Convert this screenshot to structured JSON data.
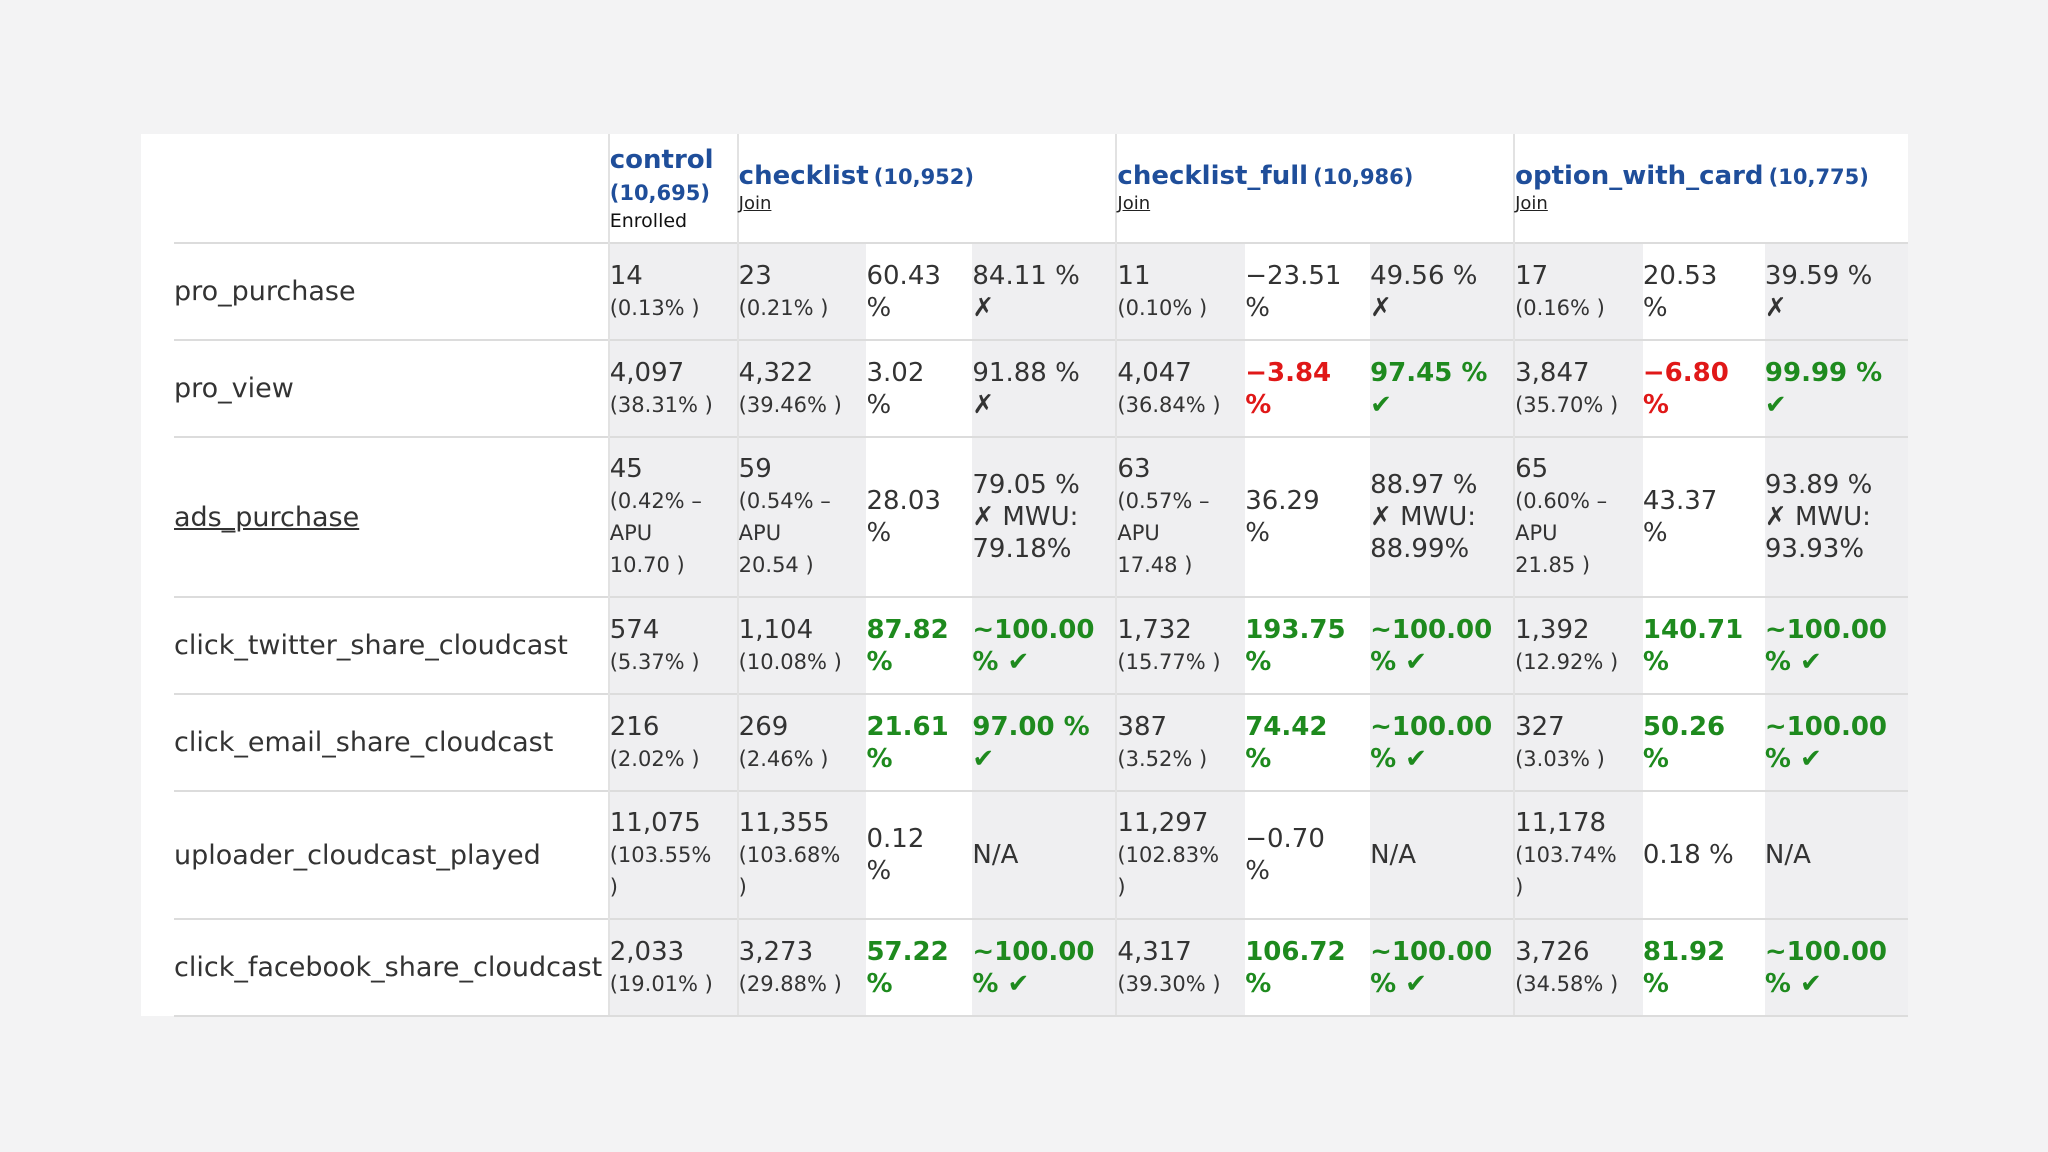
{
  "header": {
    "control": {
      "name": "control",
      "count": "(10,695)",
      "note": "Enrolled"
    },
    "variants": [
      {
        "name": "checklist",
        "count": "(10,952)",
        "link": "Join"
      },
      {
        "name": "checklist_full",
        "count": "(10,986)",
        "link": "Join"
      },
      {
        "name": "option_with_card",
        "count": "(10,775)",
        "link": "Join"
      }
    ]
  },
  "rows": [
    {
      "metric": "pro_purchase",
      "control": {
        "value": "14",
        "pct": "(0.13% )"
      },
      "variants": [
        {
          "value": "23",
          "pct": "(0.21% )",
          "change": [
            "60.43",
            "%"
          ],
          "conf": [
            "84.11 %",
            "✗"
          ]
        },
        {
          "value": "11",
          "pct": "(0.10% )",
          "change": [
            "−23.51",
            "%"
          ],
          "conf": [
            "49.56 %",
            "✗"
          ]
        },
        {
          "value": "17",
          "pct": "(0.16% )",
          "change": [
            "20.53",
            "%"
          ],
          "conf": [
            "39.59 %",
            "✗"
          ]
        }
      ]
    },
    {
      "metric": "pro_view",
      "control": {
        "value": "4,097",
        "pct": "(38.31% )"
      },
      "variants": [
        {
          "value": "4,322",
          "pct": "(39.46% )",
          "change": [
            "3.02",
            "%"
          ],
          "conf": [
            "91.88 %",
            "✗"
          ]
        },
        {
          "value": "4,047",
          "pct": "(36.84% )",
          "change": [
            "−3.84",
            "%"
          ],
          "conf": [
            "97.45 %",
            "✔"
          ]
        },
        {
          "value": "3,847",
          "pct": "(35.70% )",
          "change": [
            "−6.80",
            "%"
          ],
          "conf": [
            "99.99 %",
            "✔"
          ]
        }
      ]
    },
    {
      "metric": "ads_purchase",
      "control": {
        "value": "45",
        "pct": [
          "(0.42% –",
          "APU",
          "10.70 )"
        ]
      },
      "variants": [
        {
          "value": "59",
          "pct": [
            "(0.54% –",
            "APU",
            "20.54 )"
          ],
          "change": [
            "28.03",
            "%"
          ],
          "conf": [
            "79.05 %",
            "✗ MWU:",
            "79.18%"
          ]
        },
        {
          "value": "63",
          "pct": [
            "(0.57% –",
            "APU",
            "17.48 )"
          ],
          "change": [
            "36.29",
            "%"
          ],
          "conf": [
            "88.97 %",
            "✗ MWU:",
            "88.99%"
          ]
        },
        {
          "value": "65",
          "pct": [
            "(0.60% –",
            "APU",
            "21.85 )"
          ],
          "change": [
            "43.37",
            "%"
          ],
          "conf": [
            "93.89 %",
            "✗ MWU:",
            "93.93%"
          ]
        }
      ]
    },
    {
      "metric": "click_twitter_share_cloudcast",
      "control": {
        "value": "574",
        "pct": "(5.37% )"
      },
      "variants": [
        {
          "value": "1,104",
          "pct": "(10.08% )",
          "change": [
            "87.82",
            "%"
          ],
          "conf": [
            "~100.00",
            "% ✔"
          ]
        },
        {
          "value": "1,732",
          "pct": "(15.77% )",
          "change": [
            "193.75",
            "%"
          ],
          "conf": [
            "~100.00",
            "% ✔"
          ]
        },
        {
          "value": "1,392",
          "pct": "(12.92% )",
          "change": [
            "140.71",
            "%"
          ],
          "conf": [
            "~100.00",
            "% ✔"
          ]
        }
      ]
    },
    {
      "metric": "click_email_share_cloudcast",
      "control": {
        "value": "216",
        "pct": "(2.02% )"
      },
      "variants": [
        {
          "value": "269",
          "pct": "(2.46% )",
          "change": [
            "21.61",
            "%"
          ],
          "conf": [
            "97.00 %",
            "✔"
          ]
        },
        {
          "value": "387",
          "pct": "(3.52% )",
          "change": [
            "74.42",
            "%"
          ],
          "conf": [
            "~100.00",
            "% ✔"
          ]
        },
        {
          "value": "327",
          "pct": "(3.03% )",
          "change": [
            "50.26",
            "%"
          ],
          "conf": [
            "~100.00",
            "% ✔"
          ]
        }
      ]
    },
    {
      "metric": "uploader_cloudcast_played",
      "control": {
        "value": "11,075",
        "pct": [
          "(103.55%",
          ")"
        ]
      },
      "variants": [
        {
          "value": "11,355",
          "pct": [
            "(103.68%",
            ")"
          ],
          "change": [
            "0.12",
            "%"
          ],
          "conf": [
            "N/A"
          ]
        },
        {
          "value": "11,297",
          "pct": [
            "(102.83%",
            ")"
          ],
          "change": [
            "−0.70",
            "%"
          ],
          "conf": [
            "N/A"
          ]
        },
        {
          "value": "11,178",
          "pct": [
            "(103.74%",
            ")"
          ],
          "change": [
            "0.18 %"
          ],
          "conf": [
            "N/A"
          ]
        }
      ]
    },
    {
      "metric": "click_facebook_share_cloudcast",
      "control": {
        "value": "2,033",
        "pct": "(19.01% )"
      },
      "variants": [
        {
          "value": "3,273",
          "pct": "(29.88% )",
          "change": [
            "57.22",
            "%"
          ],
          "conf": [
            "~100.00",
            "% ✔"
          ]
        },
        {
          "value": "4,317",
          "pct": "(39.30% )",
          "change": [
            "106.72",
            "%"
          ],
          "conf": [
            "~100.00",
            "% ✔"
          ]
        },
        {
          "value": "3,726",
          "pct": "(34.58% )",
          "change": [
            "81.92",
            "%"
          ],
          "conf": [
            "~100.00",
            "% ✔"
          ]
        }
      ]
    }
  ],
  "colors": {
    "link_blue": "#1f4e9a",
    "positive": "#1e8a1e",
    "negative": "#e01818",
    "cell_gray": "#efeff1"
  }
}
